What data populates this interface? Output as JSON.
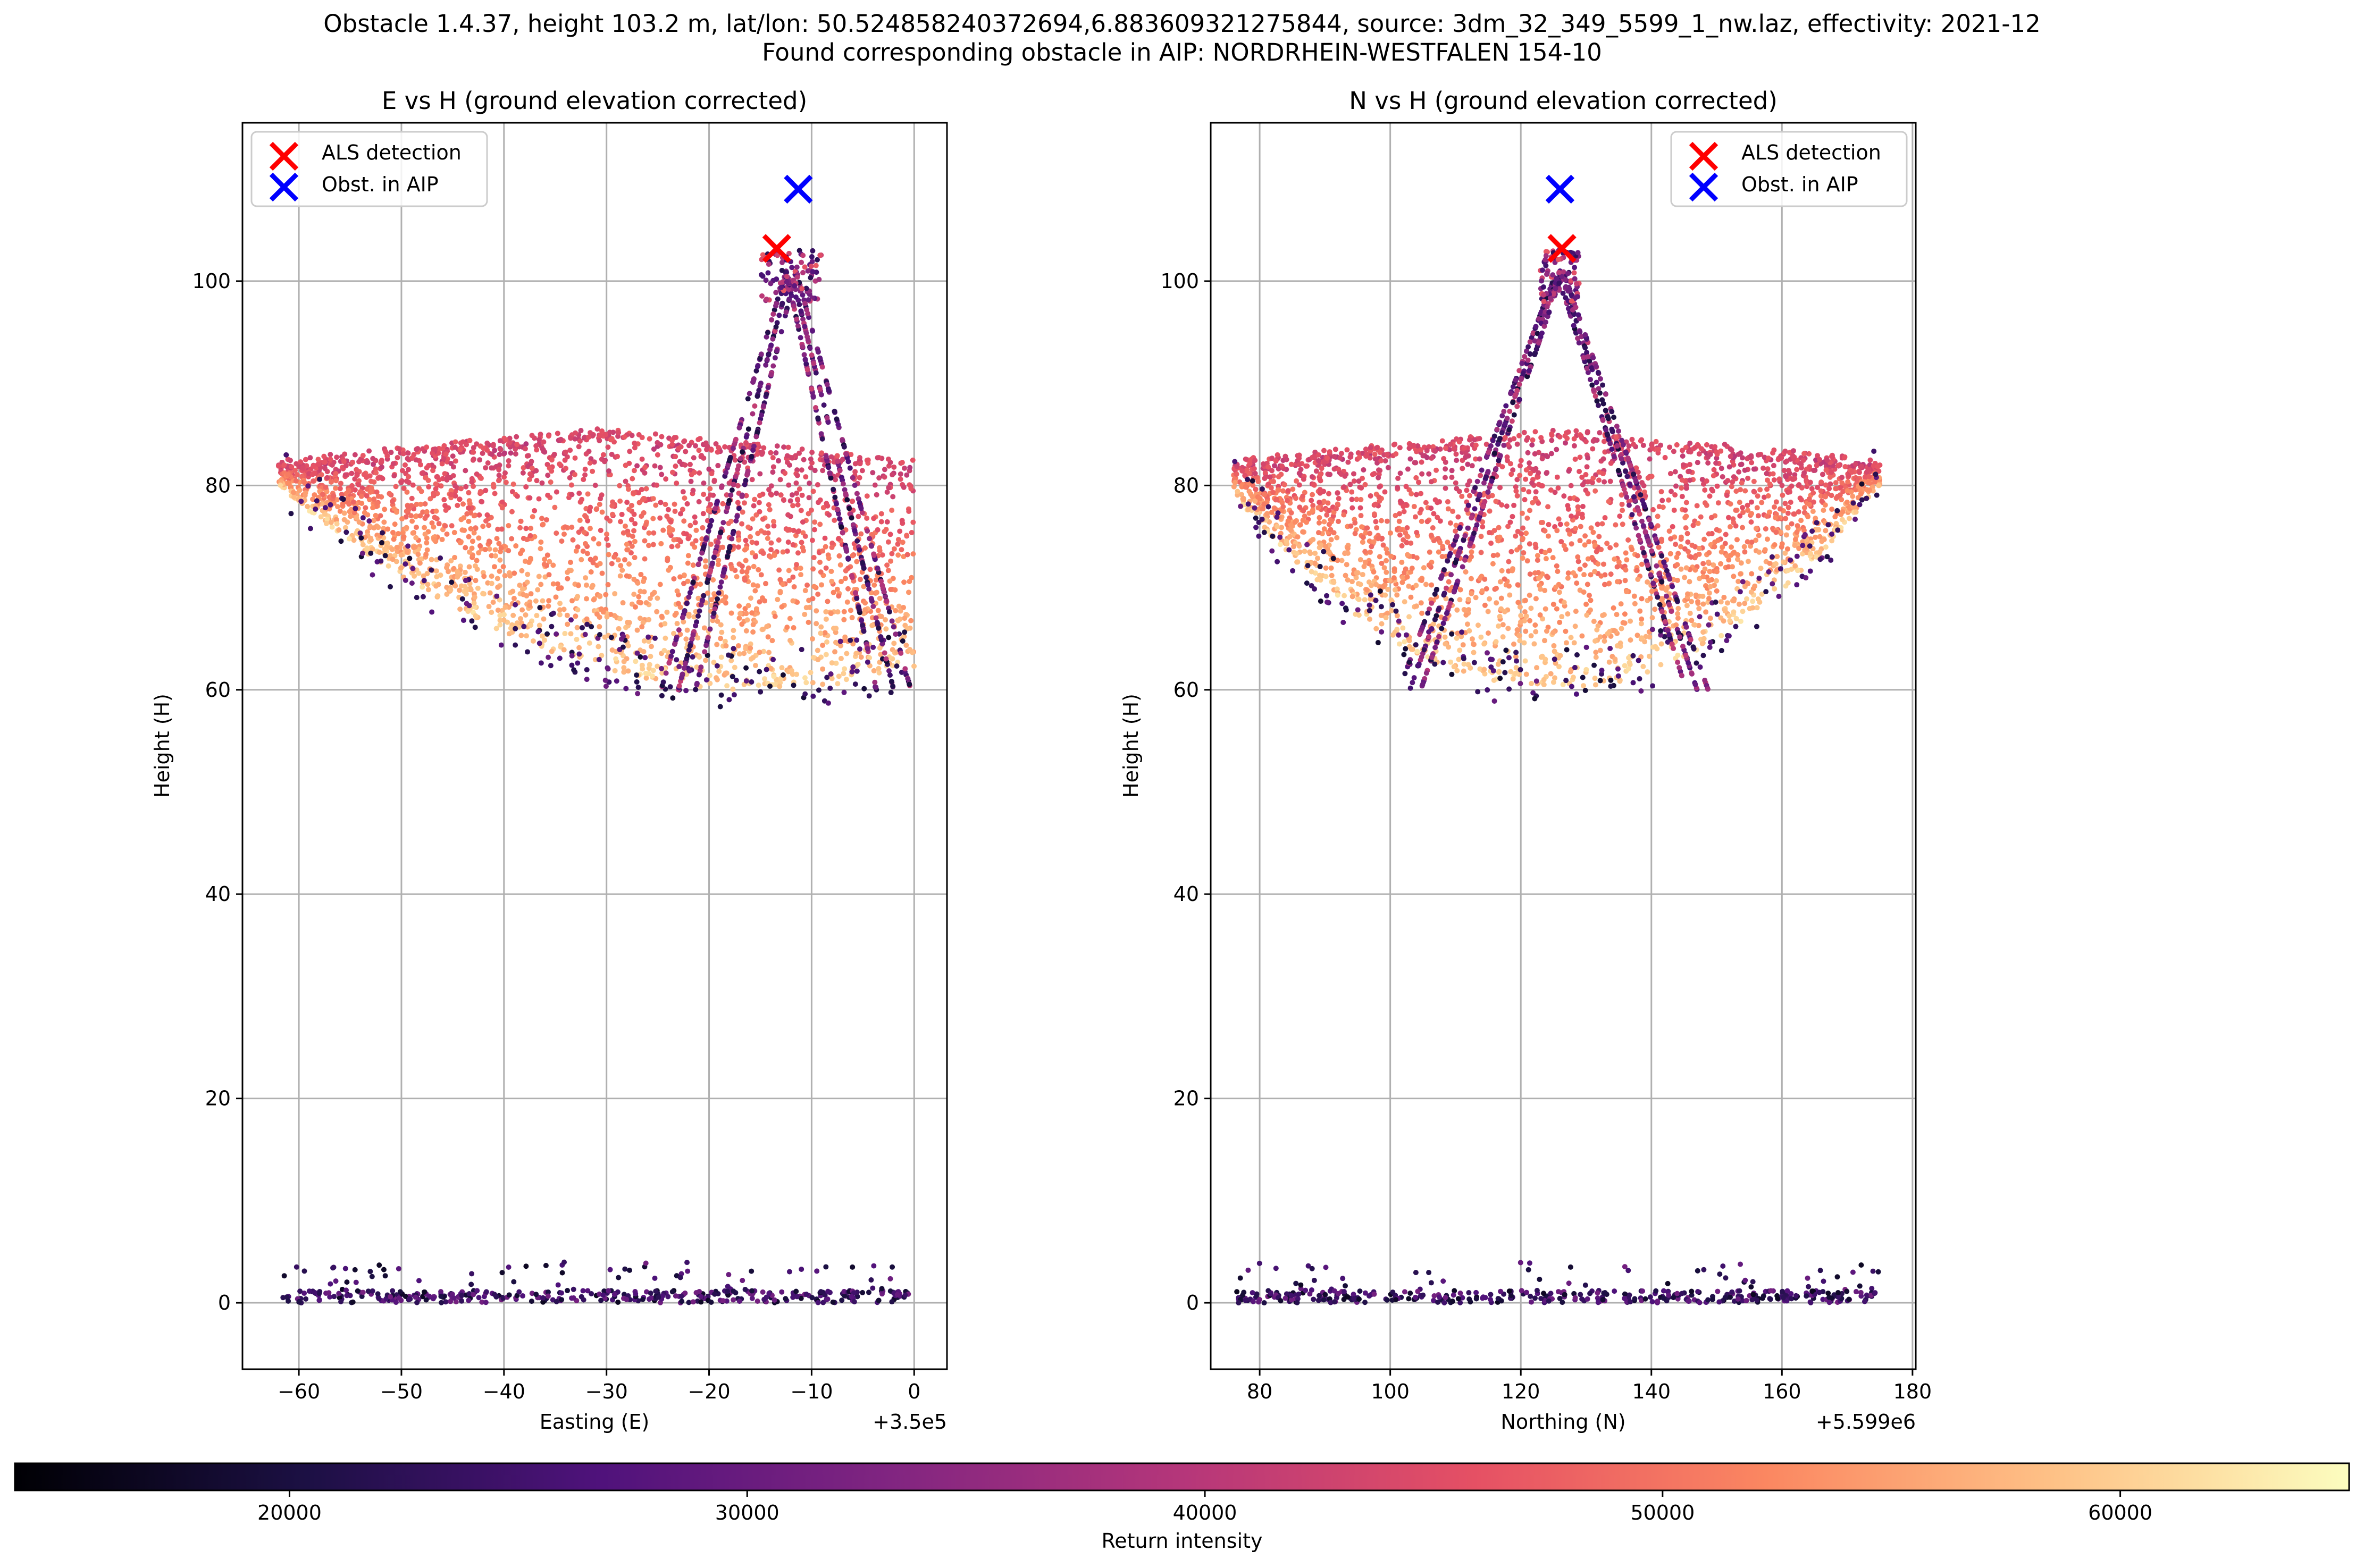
{
  "figure": {
    "suptitle_line1": "Obstacle 1.4.37, height 103.2 m, lat/lon: 50.524858240372694,6.883609321275844, source: 3dm_32_349_5599_1_nw.laz, effectivity: 2021-12",
    "suptitle_line2": "Found corresponding obstacle in AIP: NORDRHEIN-WESTFALEN 154-10",
    "colors": {
      "als_marker": "#ff0000",
      "aip_marker": "#0000ff",
      "grid": "#b0b0b0",
      "colormap": "magma"
    }
  },
  "chart_data": [
    {
      "type": "scatter",
      "title": "E vs H (ground elevation corrected)",
      "xlabel": "Easting (E)",
      "ylabel": "Height (H)",
      "x_offset_label": "+3.5e5",
      "xlim": [
        -65.5,
        3.2
      ],
      "ylim": [
        -6.5,
        115.5
      ],
      "xticks": [
        -60,
        -50,
        -40,
        -30,
        -20,
        -10,
        0
      ],
      "yticks": [
        0,
        20,
        40,
        60,
        80,
        100
      ],
      "grid": true,
      "legend_position": "upper-left",
      "legend": [
        {
          "label": "ALS detection",
          "color": "#ff0000",
          "marker": "x"
        },
        {
          "label": "Obst. in AIP",
          "color": "#0000ff",
          "marker": "x"
        }
      ],
      "markers": [
        {
          "series": "ALS detection",
          "x": -13.4,
          "y": 103.2
        },
        {
          "series": "Obst. in AIP",
          "x": -11.3,
          "y": 109.0
        }
      ],
      "point_cloud": {
        "bowl": {
          "x_range": [
            -62,
            0
          ],
          "rim_height": 85,
          "bottom_height": 60,
          "bottom_x": -15
        },
        "tower_apex": {
          "x": -12,
          "y": 103
        },
        "tower_legs_base_x": [
          -23,
          -2
        ],
        "ground_level": 0
      }
    },
    {
      "type": "scatter",
      "title": "N vs H (ground elevation corrected)",
      "xlabel": "Northing (N)",
      "ylabel": "Height (H)",
      "x_offset_label": "+5.599e6",
      "xlim": [
        72.5,
        180.5
      ],
      "ylim": [
        -6.5,
        115.5
      ],
      "xticks": [
        80,
        100,
        120,
        140,
        160,
        180
      ],
      "yticks": [
        0,
        20,
        40,
        60,
        80,
        100
      ],
      "grid": true,
      "legend_position": "upper-right",
      "legend": [
        {
          "label": "ALS detection",
          "color": "#ff0000",
          "marker": "x"
        },
        {
          "label": "Obst. in AIP",
          "color": "#0000ff",
          "marker": "x"
        }
      ],
      "markers": [
        {
          "series": "ALS detection",
          "x": 126.3,
          "y": 103.2
        },
        {
          "series": "Obst. in AIP",
          "x": 126.0,
          "y": 109.0
        }
      ],
      "point_cloud": {
        "bowl": {
          "x_range": [
            76,
            175
          ],
          "rim_height": 85,
          "bottom_height": 60,
          "bottom_x": 125
        },
        "tower_apex": {
          "x": 126,
          "y": 103
        },
        "tower_legs_base_x": [
          103,
          147
        ],
        "ground_level": 0
      }
    }
  ],
  "colorbar": {
    "label": "Return intensity",
    "colormap": "magma",
    "range": [
      14000,
      65000
    ],
    "ticks": [
      20000,
      30000,
      40000,
      50000,
      60000
    ],
    "tick_labels": [
      "20000",
      "30000",
      "40000",
      "50000",
      "60000"
    ]
  }
}
